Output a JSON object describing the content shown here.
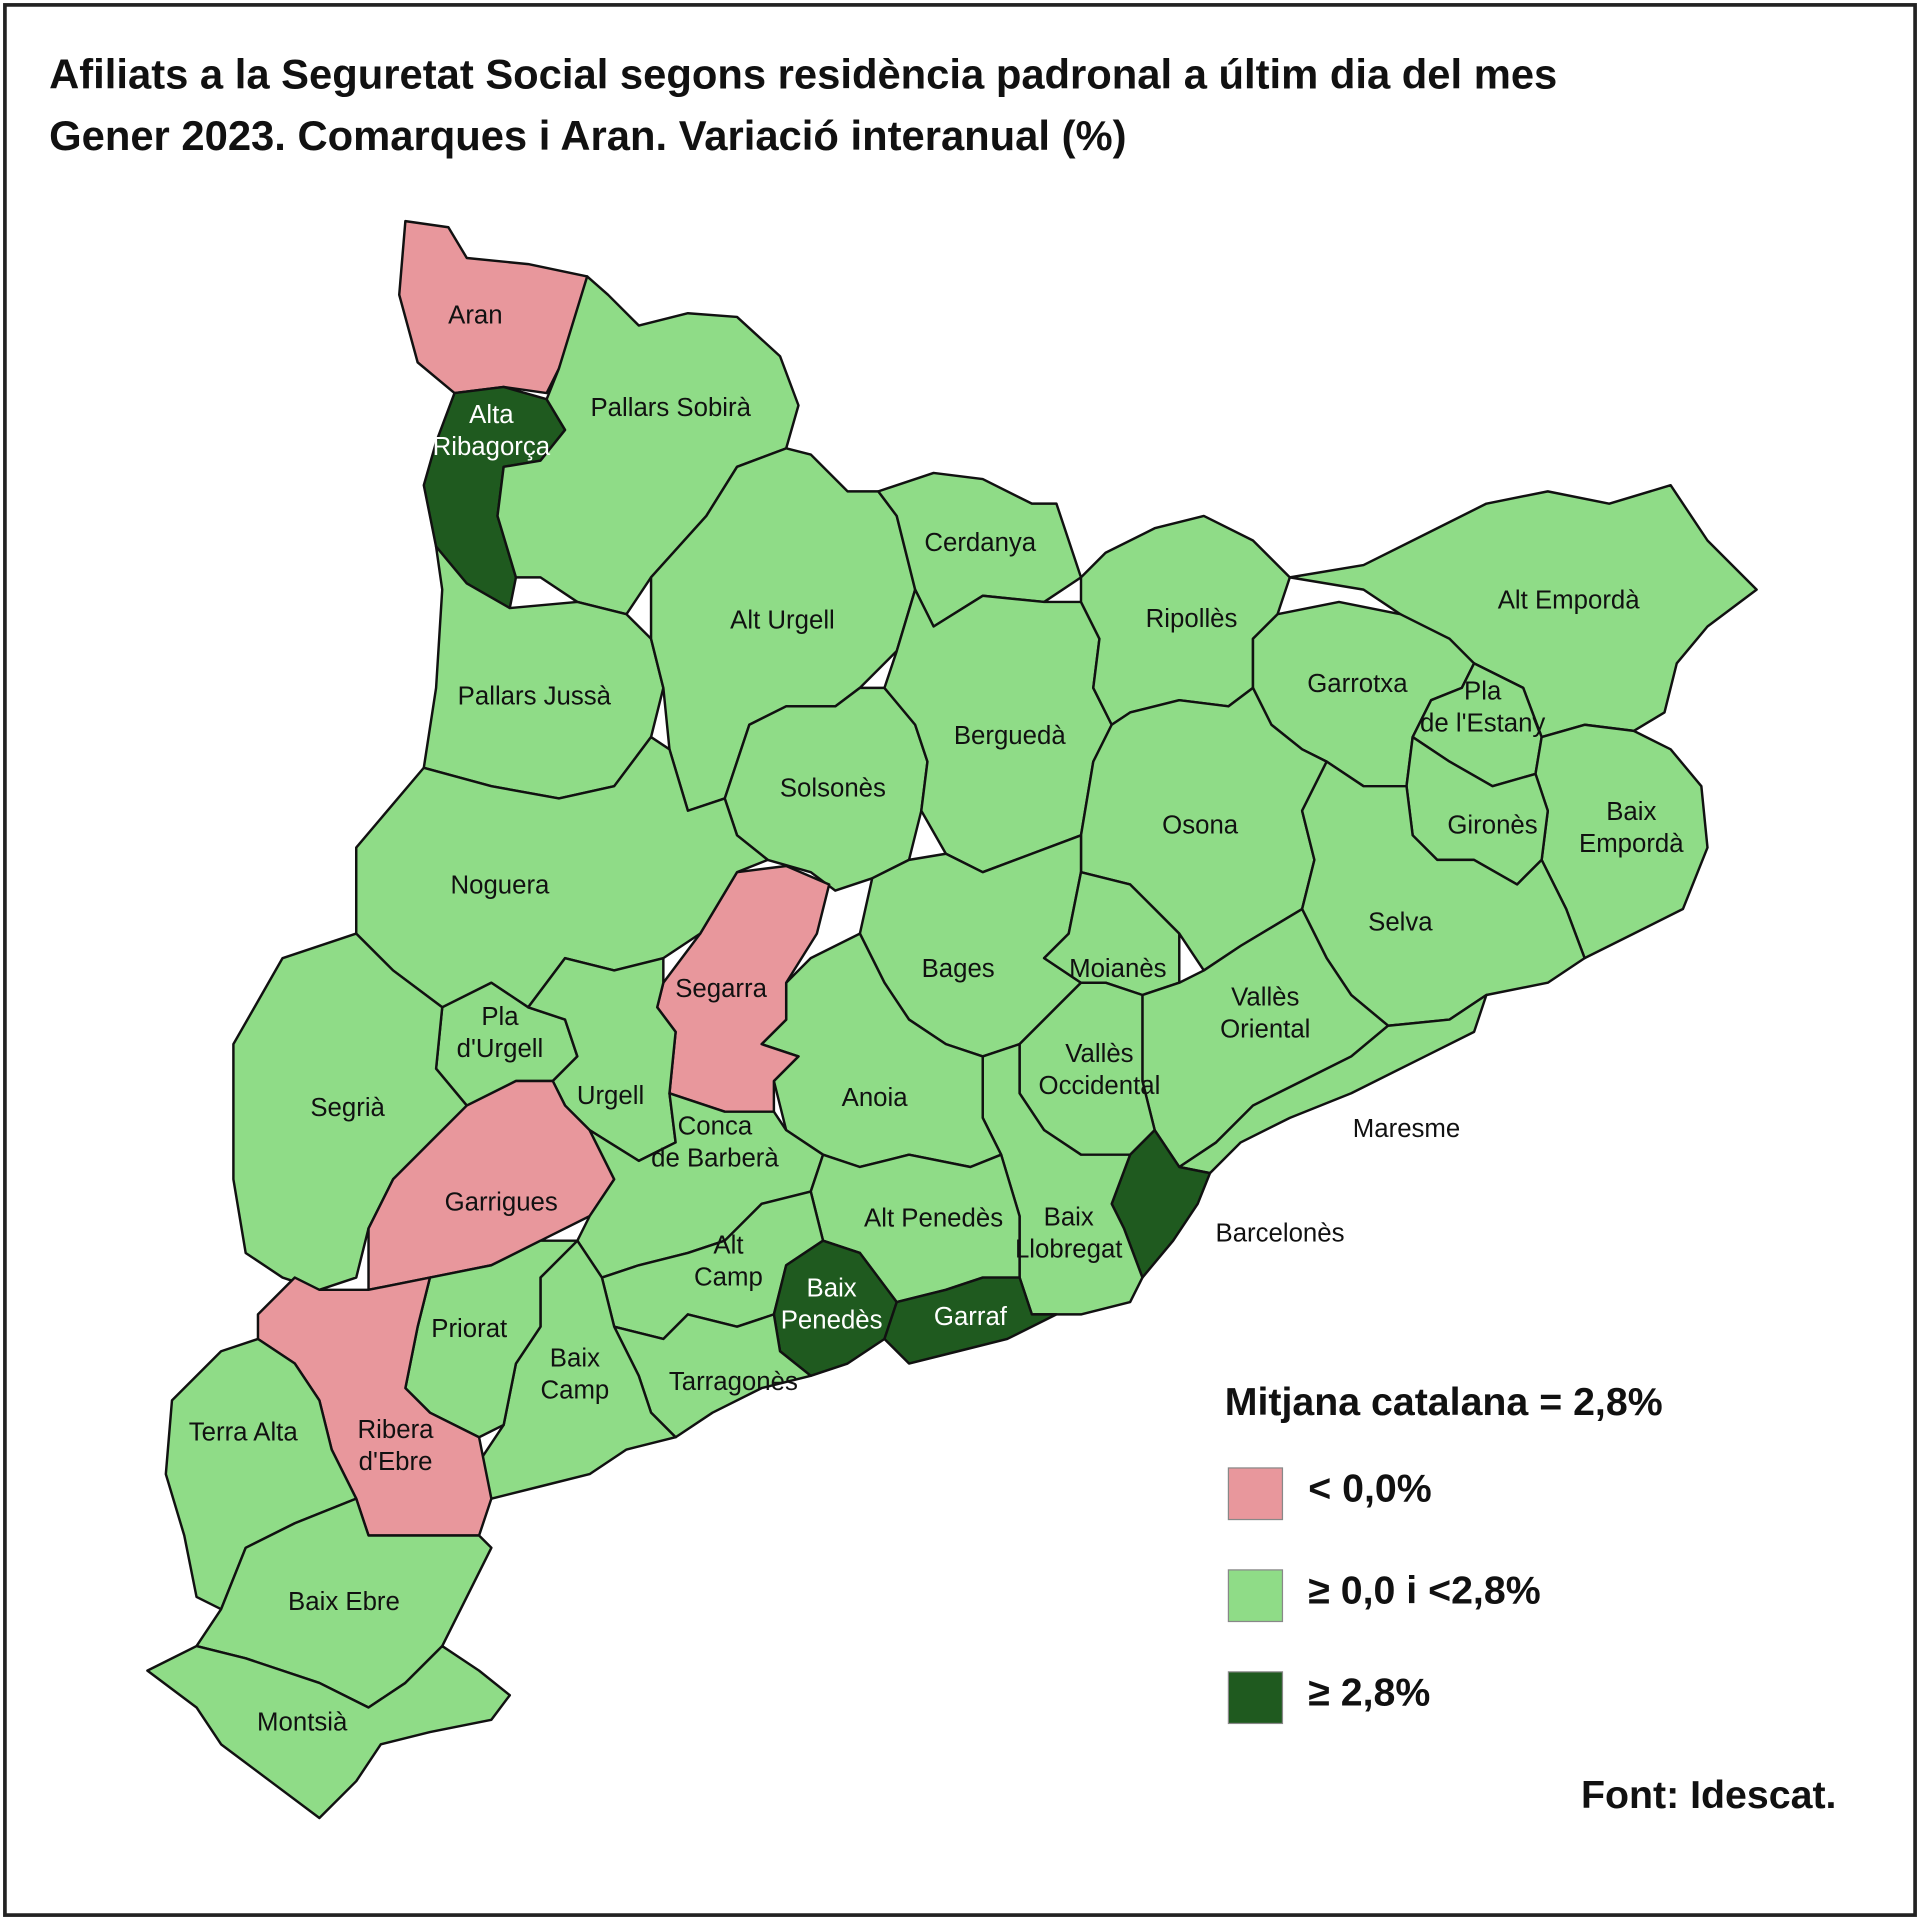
{
  "title": [
    "Afiliats a la Seguretat Social segons residència padronal a últim dia del mes",
    "Gener 2023. Comarques i Aran. Variació interanual (%)"
  ],
  "regions": [
    {
      "label": [
        "Aran"
      ],
      "color": "#e8979c"
    },
    {
      "label": [
        "Alta",
        "Ribagorça"
      ],
      "color": "#1f5a1f"
    },
    {
      "label": [
        "Pallars Sobirà"
      ],
      "color": "#8fdc87"
    },
    {
      "label": [
        "Pallars Jussà"
      ],
      "color": "#8fdc87"
    },
    {
      "label": [
        "Alt Urgell"
      ],
      "color": "#8fdc87"
    },
    {
      "label": [
        "Cerdanya"
      ],
      "color": "#8fdc87"
    },
    {
      "label": [
        "Solsonès"
      ],
      "color": "#8fdc87"
    },
    {
      "label": [
        "Berguedà"
      ],
      "color": "#8fdc87"
    },
    {
      "label": [
        "Ripollès"
      ],
      "color": "#8fdc87"
    },
    {
      "label": [
        "Alt Empordà"
      ],
      "color": "#8fdc87"
    },
    {
      "label": [
        "Garrotxa"
      ],
      "color": "#8fdc87"
    },
    {
      "label": [
        "Pla",
        "de l'Estany"
      ],
      "color": "#8fdc87"
    },
    {
      "label": [
        "Baix",
        "Empordà"
      ],
      "color": "#8fdc87"
    },
    {
      "label": [
        "Gironès"
      ],
      "color": "#8fdc87"
    },
    {
      "label": [
        "Osona"
      ],
      "color": "#8fdc87"
    },
    {
      "label": [
        "Selva"
      ],
      "color": "#8fdc87"
    },
    {
      "label": [
        "Bages"
      ],
      "color": "#8fdc87"
    },
    {
      "label": [
        "Moianès"
      ],
      "color": "#8fdc87"
    },
    {
      "label": [
        "Vallès",
        "Oriental"
      ],
      "color": "#8fdc87"
    },
    {
      "label": [
        "Maresme"
      ],
      "color": "#8fdc87"
    },
    {
      "label": [
        "Vallès",
        "Occidental"
      ],
      "color": "#8fdc87"
    },
    {
      "label": [
        "Barcelonès"
      ],
      "color": "#1f5a1f"
    },
    {
      "label": [
        "Baix",
        "Llobregat"
      ],
      "color": "#8fdc87"
    },
    {
      "label": [
        "Anoia"
      ],
      "color": "#8fdc87"
    },
    {
      "label": [
        "Segarra"
      ],
      "color": "#e8979c"
    },
    {
      "label": [
        "Noguera"
      ],
      "color": "#8fdc87"
    },
    {
      "label": [
        "Pla",
        "d'Urgell"
      ],
      "color": "#8fdc87"
    },
    {
      "label": [
        "Urgell"
      ],
      "color": "#8fdc87"
    },
    {
      "label": [
        "Segrià"
      ],
      "color": "#8fdc87"
    },
    {
      "label": [
        "Garrigues"
      ],
      "color": "#e8979c"
    },
    {
      "label": [
        "Conca",
        "de Barberà"
      ],
      "color": "#8fdc87"
    },
    {
      "label": [
        "Alt Penedès"
      ],
      "color": "#8fdc87"
    },
    {
      "label": [
        "Alt",
        "Camp"
      ],
      "color": "#8fdc87"
    },
    {
      "label": [
        "Baix",
        "Penedès"
      ],
      "color": "#1f5a1f"
    },
    {
      "label": [
        "Garraf"
      ],
      "color": "#1f5a1f"
    },
    {
      "label": [
        "Tarragonès"
      ],
      "color": "#8fdc87"
    },
    {
      "label": [
        "Baix",
        "Camp"
      ],
      "color": "#8fdc87"
    },
    {
      "label": [
        "Priorat"
      ],
      "color": "#8fdc87"
    },
    {
      "label": [
        "Ribera",
        "d'Ebre"
      ],
      "color": "#e8979c"
    },
    {
      "label": [
        "Terra Alta"
      ],
      "color": "#8fdc87"
    },
    {
      "label": [
        "Baix Ebre"
      ],
      "color": "#8fdc87"
    },
    {
      "label": [
        "Montsià"
      ],
      "color": "#8fdc87"
    }
  ],
  "legend": {
    "title": "Mitjana catalana = 2,8%",
    "classes": [
      {
        "label": "< 0,0%",
        "color": "#e8979c"
      },
      {
        "label": "≥ 0,0 i <2,8%",
        "color": "#8fdc87"
      },
      {
        "label": "≥ 2,8%",
        "color": "#1f5a1f"
      }
    ]
  },
  "source": "Font: Idescat."
}
